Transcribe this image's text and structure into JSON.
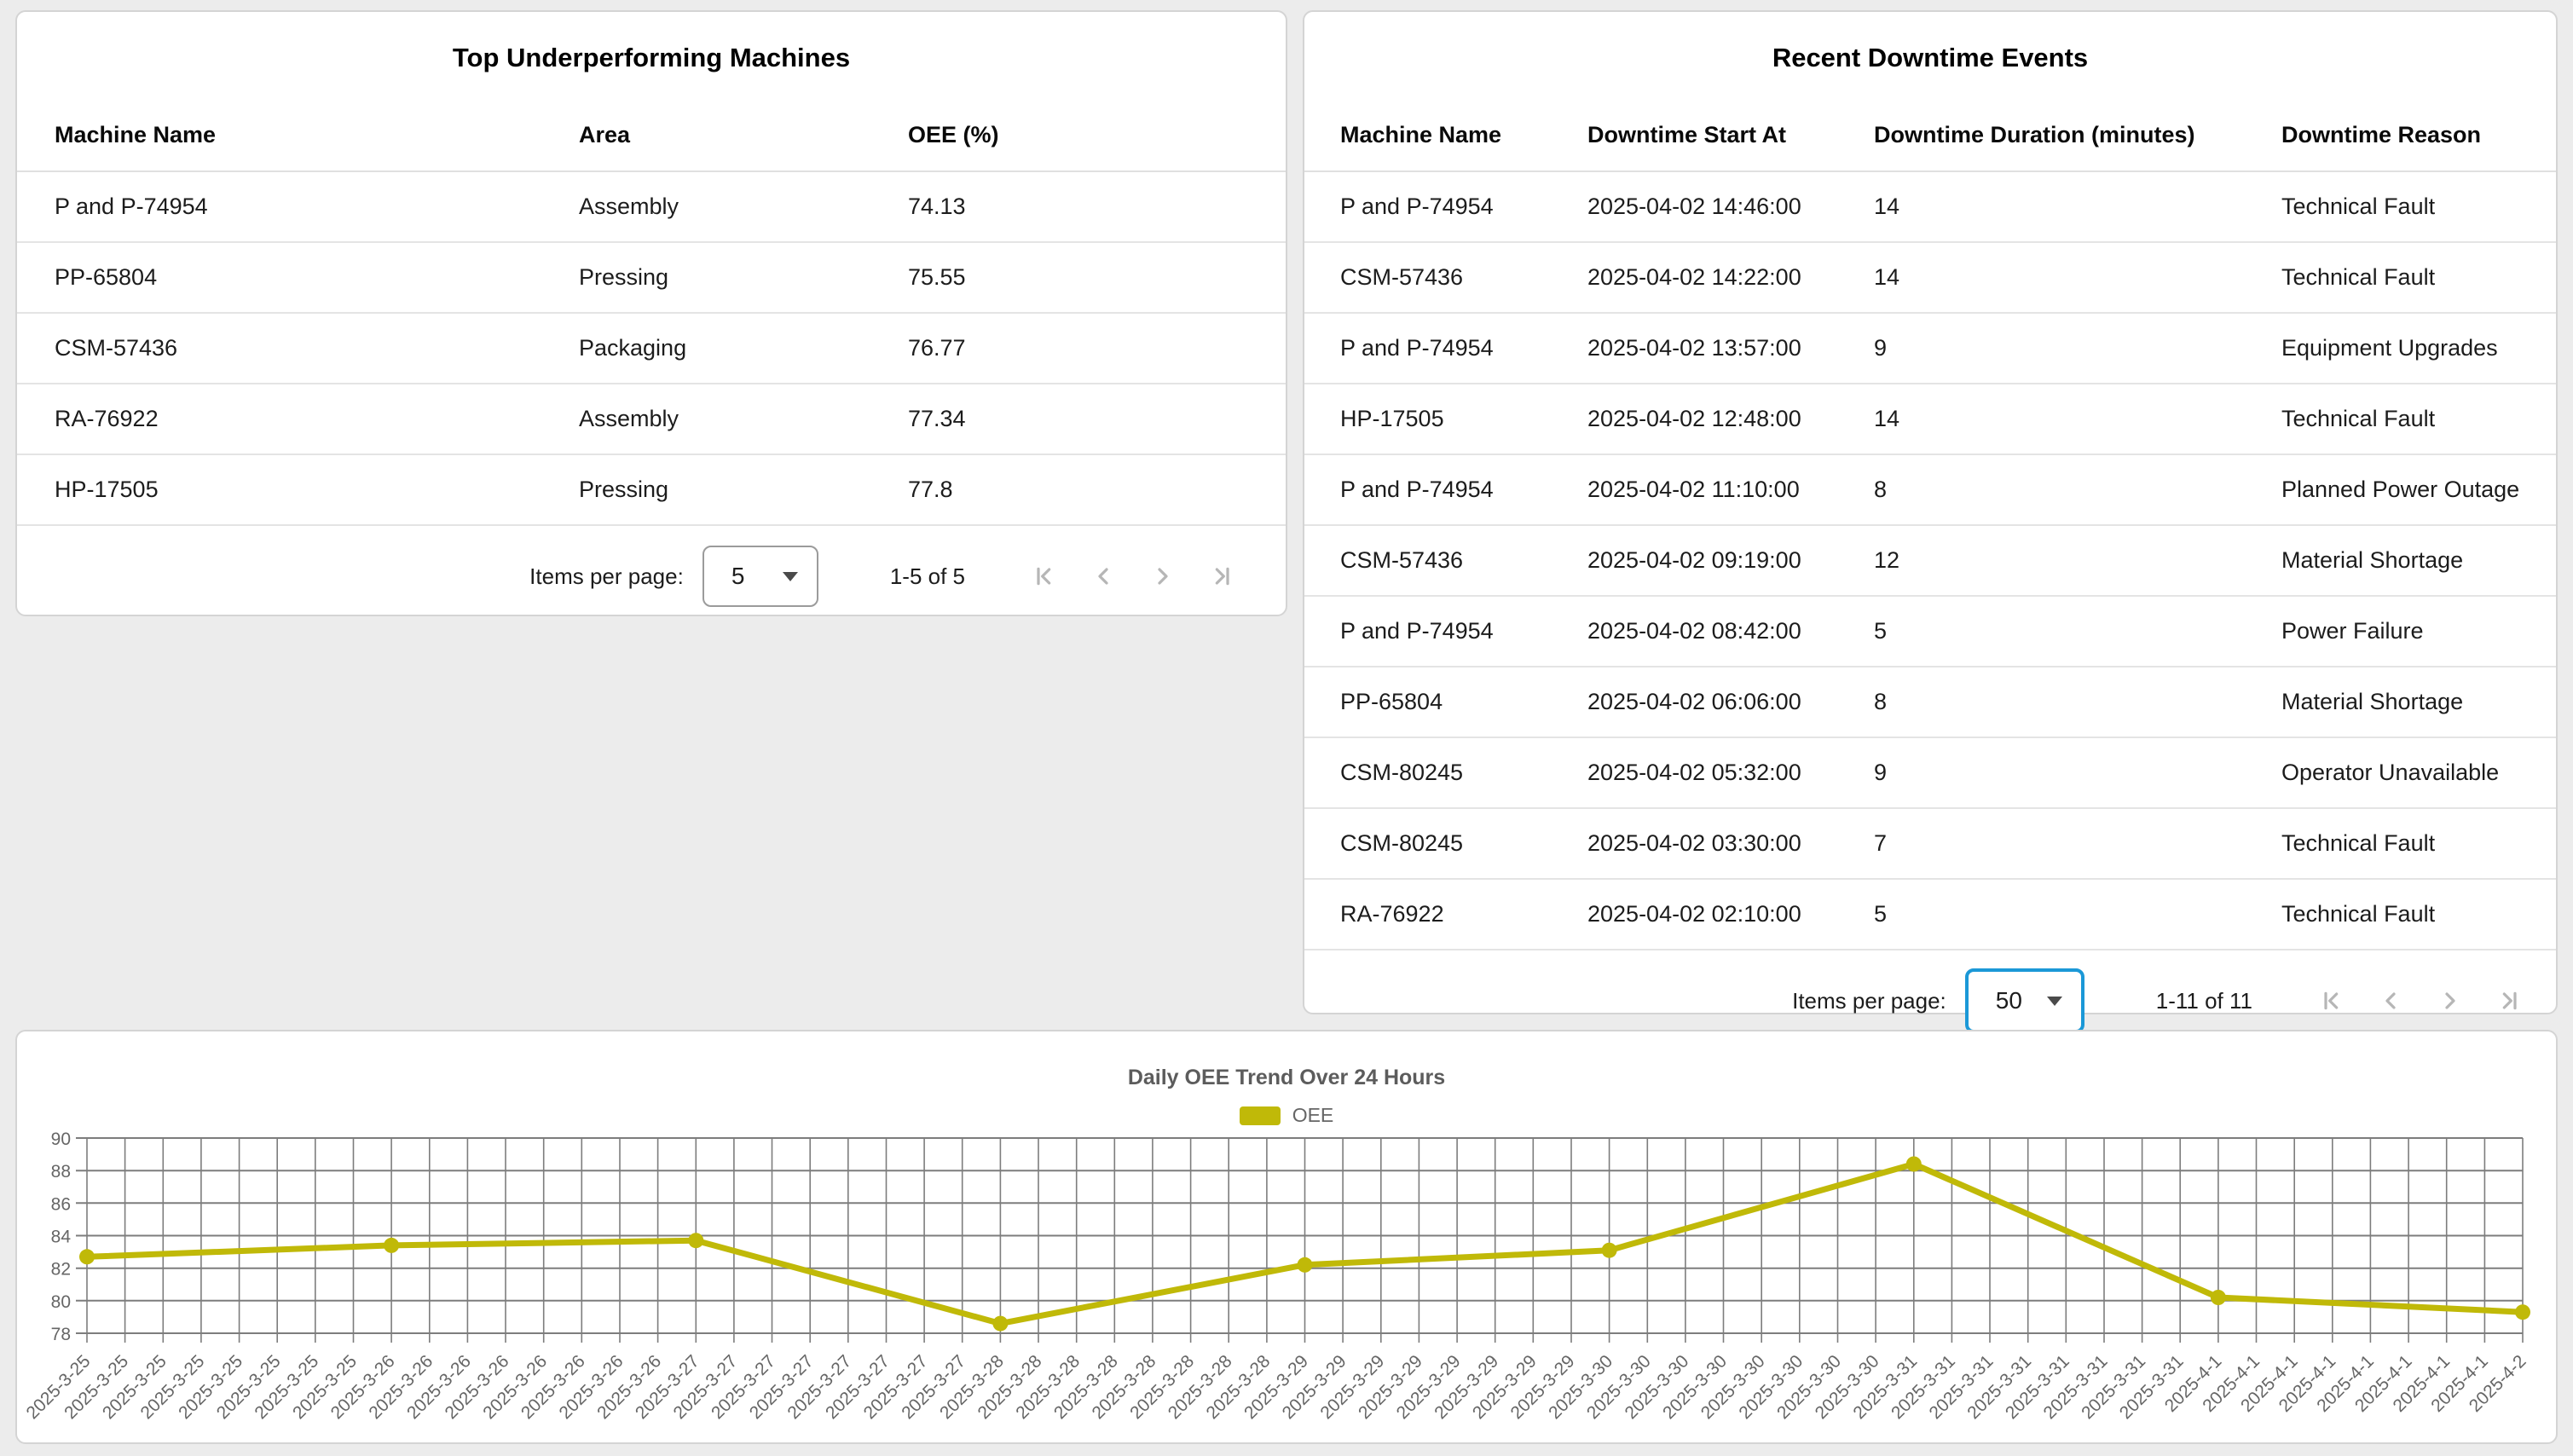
{
  "left_table": {
    "title": "Top Underperforming Machines",
    "columns": [
      "Machine Name",
      "Area",
      "OEE (%)"
    ],
    "rows": [
      {
        "machine": "P and P-74954",
        "area": "Assembly",
        "oee": "74.13"
      },
      {
        "machine": "PP-65804",
        "area": "Pressing",
        "oee": "75.55"
      },
      {
        "machine": "CSM-57436",
        "area": "Packaging",
        "oee": "76.77"
      },
      {
        "machine": "RA-76922",
        "area": "Assembly",
        "oee": "77.34"
      },
      {
        "machine": "HP-17505",
        "area": "Pressing",
        "oee": "77.8"
      }
    ],
    "pagination": {
      "label": "Items per page:",
      "page_size": "5",
      "range": "1-5 of 5"
    }
  },
  "right_table": {
    "title": "Recent Downtime Events",
    "columns": [
      "Machine Name",
      "Downtime Start At",
      "Downtime Duration (minutes)",
      "Downtime Reason"
    ],
    "rows": [
      {
        "machine": "P and P-74954",
        "start": "2025-04-02 14:46:00",
        "duration": "14",
        "reason": "Technical Fault"
      },
      {
        "machine": "CSM-57436",
        "start": "2025-04-02 14:22:00",
        "duration": "14",
        "reason": "Technical Fault"
      },
      {
        "machine": "P and P-74954",
        "start": "2025-04-02 13:57:00",
        "duration": "9",
        "reason": "Equipment Upgrades"
      },
      {
        "machine": "HP-17505",
        "start": "2025-04-02 12:48:00",
        "duration": "14",
        "reason": "Technical Fault"
      },
      {
        "machine": "P and P-74954",
        "start": "2025-04-02 11:10:00",
        "duration": "8",
        "reason": "Planned Power Outage"
      },
      {
        "machine": "CSM-57436",
        "start": "2025-04-02 09:19:00",
        "duration": "12",
        "reason": "Material Shortage"
      },
      {
        "machine": "P and P-74954",
        "start": "2025-04-02 08:42:00",
        "duration": "5",
        "reason": "Power Failure"
      },
      {
        "machine": "PP-65804",
        "start": "2025-04-02 06:06:00",
        "duration": "8",
        "reason": "Material Shortage"
      },
      {
        "machine": "CSM-80245",
        "start": "2025-04-02 05:32:00",
        "duration": "9",
        "reason": "Operator Unavailable"
      },
      {
        "machine": "CSM-80245",
        "start": "2025-04-02 03:30:00",
        "duration": "7",
        "reason": "Technical Fault"
      },
      {
        "machine": "RA-76922",
        "start": "2025-04-02 02:10:00",
        "duration": "5",
        "reason": "Technical Fault"
      }
    ],
    "pagination": {
      "label": "Items per page:",
      "page_size": "50",
      "range": "1-11 of 11",
      "focused": true
    }
  },
  "chart_data": {
    "type": "line",
    "title": "Daily OEE Trend Over 24 Hours",
    "legend_label": "OEE",
    "legend_position": "top",
    "grid": true,
    "color": "#c0b908",
    "ylim": [
      78,
      90
    ],
    "y_ticks": [
      78,
      80,
      82,
      84,
      86,
      88,
      90
    ],
    "ticks_per_day": 8,
    "days": [
      "2025-3-25",
      "2025-3-26",
      "2025-3-27",
      "2025-3-28",
      "2025-3-29",
      "2025-3-30",
      "2025-3-31",
      "2025-4-1",
      "2025-4-2"
    ],
    "values": [
      82.7,
      83.4,
      83.7,
      78.6,
      82.2,
      83.1,
      88.4,
      80.2,
      79.3
    ],
    "x_ticks": [
      "2025-3-25",
      "2025-3-25",
      "2025-3-25",
      "2025-3-25",
      "2025-3-25",
      "2025-3-25",
      "2025-3-25",
      "2025-3-25",
      "2025-3-26",
      "2025-3-26",
      "2025-3-26",
      "2025-3-26",
      "2025-3-26",
      "2025-3-26",
      "2025-3-26",
      "2025-3-26",
      "2025-3-27",
      "2025-3-27",
      "2025-3-27",
      "2025-3-27",
      "2025-3-27",
      "2025-3-27",
      "2025-3-27",
      "2025-3-27",
      "2025-3-28",
      "2025-3-28",
      "2025-3-28",
      "2025-3-28",
      "2025-3-28",
      "2025-3-28",
      "2025-3-28",
      "2025-3-28",
      "2025-3-29",
      "2025-3-29",
      "2025-3-29",
      "2025-3-29",
      "2025-3-29",
      "2025-3-29",
      "2025-3-29",
      "2025-3-29",
      "2025-3-30",
      "2025-3-30",
      "2025-3-30",
      "2025-3-30",
      "2025-3-30",
      "2025-3-30",
      "2025-3-30",
      "2025-3-30",
      "2025-3-31",
      "2025-3-31",
      "2025-3-31",
      "2025-3-31",
      "2025-3-31",
      "2025-3-31",
      "2025-3-31",
      "2025-3-31",
      "2025-4-1",
      "2025-4-1",
      "2025-4-1",
      "2025-4-1",
      "2025-4-1",
      "2025-4-1",
      "2025-4-1",
      "2025-4-1",
      "2025-4-2"
    ]
  },
  "colors": {
    "page_bg": "#ececec",
    "card_border": "#d4d4d4",
    "focus_blue": "#1b98d7",
    "divider": "#e4e4e4",
    "disabled_icon": "#b6b6b6",
    "grid_line": "#7d7d7d",
    "axis_text": "#666666"
  }
}
